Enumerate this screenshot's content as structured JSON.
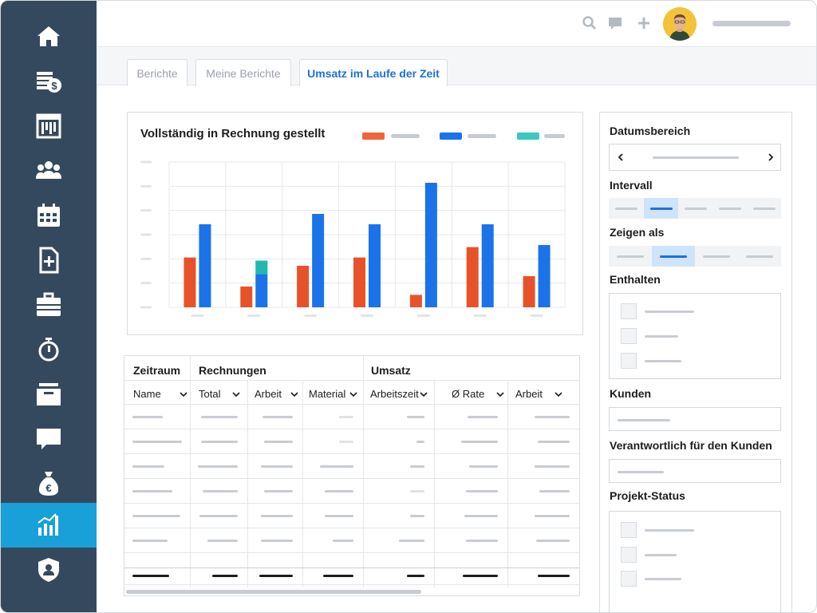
{
  "sidebar": {
    "items": [
      {
        "icon": "home-icon"
      },
      {
        "icon": "invoices-icon"
      },
      {
        "icon": "dashboard-icon"
      },
      {
        "icon": "team-icon"
      },
      {
        "icon": "calendar-icon"
      },
      {
        "icon": "new-document-icon"
      },
      {
        "icon": "briefcase-icon"
      },
      {
        "icon": "stopwatch-icon"
      },
      {
        "icon": "inbox-icon"
      },
      {
        "icon": "chat-icon"
      },
      {
        "icon": "euro-bag-icon"
      },
      {
        "icon": "reports-chart-icon",
        "active": true
      },
      {
        "icon": "shield-user-icon"
      }
    ],
    "bg_color": "#35495e",
    "active_color": "#1aa0d8"
  },
  "header": {
    "icons": [
      "search-icon",
      "comment-icon",
      "plus-icon"
    ]
  },
  "tabs": [
    {
      "label": "Berichte"
    },
    {
      "label": "Meine Berichte"
    },
    {
      "label": "Umsatz im Laufe der Zeit",
      "active": true
    }
  ],
  "chart": {
    "title": "Vollständig in Rechnung gestellt",
    "legend_colors": [
      "#f0643c",
      "#1a73e8",
      "#3cc8c0"
    ]
  },
  "chart_data": {
    "type": "bar",
    "title": "Vollständig in Rechnung gestellt",
    "categories": [
      "",
      "",
      "",
      "",
      "",
      "",
      ""
    ],
    "series": [
      {
        "color": "#e8522a",
        "values": [
          2.4,
          1.0,
          2.0,
          2.4,
          0.6,
          2.9,
          1.5
        ]
      },
      {
        "color": "#1a73e8",
        "values": [
          4.0,
          1.6,
          4.5,
          4.0,
          6.0,
          4.0,
          3.0
        ]
      },
      {
        "color": "#20b8b0",
        "values": [
          0,
          0.65,
          0,
          0,
          0,
          0,
          0
        ],
        "stacked_on": 1
      }
    ],
    "ylim": [
      0,
      7
    ],
    "grid": true,
    "legend_position": "top-right"
  },
  "table": {
    "groups": {
      "period": "Zeitraum",
      "invoices": "Rechnungen",
      "revenue": "Umsatz"
    },
    "columns": [
      "Name",
      "Total",
      "Arbeit",
      "Material",
      "Arbeitszeit",
      "Ø Rate",
      "Arbeit"
    ]
  },
  "filters": {
    "date_range": "Datumsbereich",
    "interval": "Intervall",
    "show_as": "Zeigen als",
    "contains": "Enthalten",
    "customers": "Kunden",
    "responsible": "Verantwortlich für den Kunden",
    "project_status": "Projekt-Status",
    "accent_color": "#1a73d9"
  }
}
